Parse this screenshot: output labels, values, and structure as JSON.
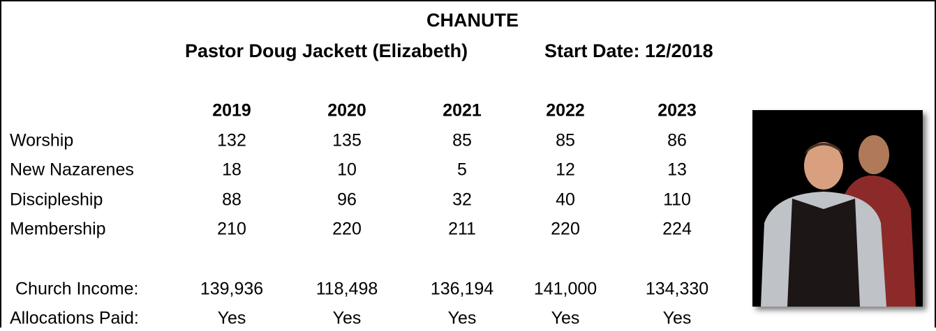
{
  "header": {
    "title": "CHANUTE",
    "pastor": "Pastor Doug Jackett (Elizabeth)",
    "start_date": "Start Date: 12/2018"
  },
  "table": {
    "columns": [
      "2019",
      "2020",
      "2021",
      "2022",
      "2023"
    ],
    "rows": [
      {
        "label": "Worship",
        "values": [
          "132",
          "135",
          "85",
          "85",
          "86"
        ]
      },
      {
        "label": "New Nazarenes",
        "values": [
          "18",
          "10",
          "5",
          "12",
          "13"
        ]
      },
      {
        "label": "Discipleship",
        "values": [
          "88",
          "96",
          "32",
          "40",
          "110"
        ]
      },
      {
        "label": "Membership",
        "values": [
          "210",
          "220",
          "211",
          "220",
          "224"
        ]
      }
    ],
    "summary_rows": [
      {
        "label": "Church Income:",
        "values": [
          "139,936",
          "118,498",
          "136,194",
          "141,000",
          "134,330"
        ]
      },
      {
        "label": "Allocations Paid:",
        "values": [
          "Yes",
          "Yes",
          "Yes",
          "Yes",
          "Yes"
        ]
      }
    ]
  }
}
